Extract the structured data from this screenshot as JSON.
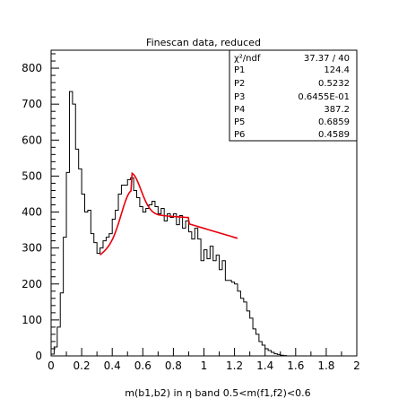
{
  "chart_data": {
    "type": "histogram",
    "title": "Finescan data, reduced",
    "xlabel": "m(b1,b2) in η band 0.5<m(f1,f2)<0.6",
    "ylabel": "",
    "xlim": [
      0,
      2
    ],
    "ylim": [
      0,
      850
    ],
    "x_ticks": [
      "0",
      "0.2",
      "0.4",
      "0.6",
      "0.8",
      "1",
      "1.2",
      "1.4",
      "1.6",
      "1.8",
      "2"
    ],
    "y_ticks": [
      "0",
      "100",
      "200",
      "300",
      "400",
      "500",
      "600",
      "700",
      "800"
    ],
    "grid": false,
    "histogram": {
      "color": "#000000",
      "bin_width": 0.02,
      "x_start": 0.0,
      "values": [
        5,
        25,
        80,
        175,
        330,
        510,
        735,
        700,
        575,
        520,
        450,
        400,
        405,
        340,
        315,
        285,
        300,
        320,
        330,
        340,
        380,
        405,
        450,
        475,
        475,
        490,
        495,
        460,
        440,
        415,
        400,
        410,
        420,
        430,
        415,
        395,
        410,
        375,
        395,
        385,
        395,
        365,
        390,
        355,
        375,
        345,
        325,
        355,
        325,
        265,
        295,
        270,
        305,
        265,
        280,
        240,
        265,
        210,
        210,
        205,
        200,
        180,
        160,
        150,
        125,
        105,
        75,
        60,
        40,
        30,
        20,
        15,
        10,
        6,
        4,
        2,
        1,
        0,
        0,
        0,
        0,
        0,
        0,
        0,
        0,
        0,
        0,
        0,
        0,
        0,
        0,
        0,
        0,
        0,
        0,
        0,
        0,
        0,
        0,
        0
      ]
    },
    "fit": {
      "color": "#e8000b",
      "x_range": [
        0.32,
        1.22
      ],
      "p1": 124.4,
      "p2": 0.5232,
      "p3": 0.06455,
      "p4": 387.2,
      "p5": 0.6859,
      "p6": 0.4589
    },
    "stats_box": {
      "chi_label": "χ²/ndf",
      "chi_value": "37.37  /  40",
      "rows": [
        {
          "name": "P1",
          "value": "124.4"
        },
        {
          "name": "P2",
          "value": "0.5232"
        },
        {
          "name": "P3",
          "value": "0.6455E-01"
        },
        {
          "name": "P4",
          "value": "387.2"
        },
        {
          "name": "P5",
          "value": "0.6859"
        },
        {
          "name": "P6",
          "value": "0.4589"
        }
      ]
    }
  }
}
